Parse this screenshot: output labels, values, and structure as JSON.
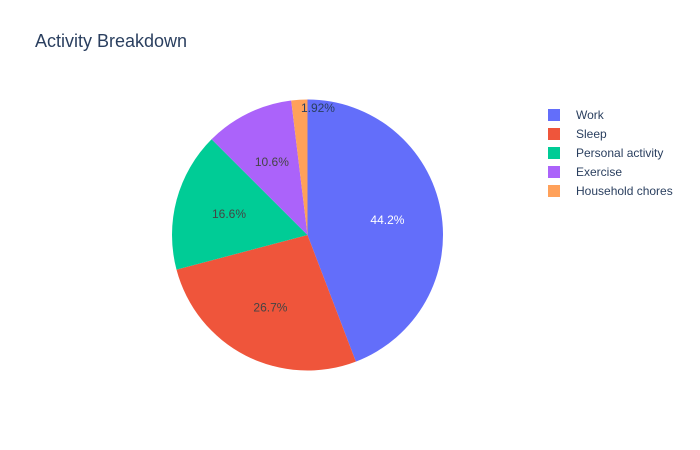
{
  "chart_data": {
    "type": "pie",
    "title": "Activity Breakdown",
    "categories": [
      "Work",
      "Sleep",
      "Personal activity",
      "Exercise",
      "Household chores"
    ],
    "values": [
      44.2,
      26.7,
      16.6,
      10.6,
      1.92
    ],
    "labels": [
      "44.2%",
      "26.7%",
      "16.6%",
      "10.6%",
      "1.92%"
    ],
    "colors": [
      "#636efa",
      "#EF553B",
      "#00cc96",
      "#ab63fa",
      "#FFA15A"
    ],
    "direction": "clockwise",
    "legend_position": "top-right"
  }
}
